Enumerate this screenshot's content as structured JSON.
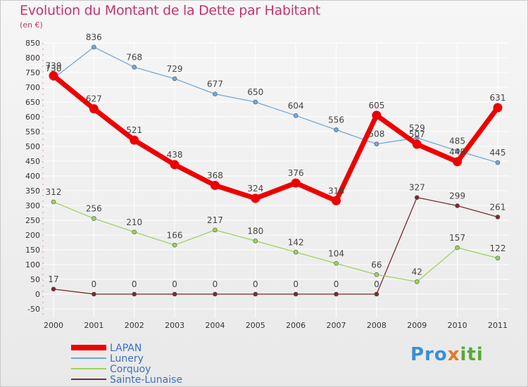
{
  "chart_data": {
    "type": "line",
    "title": "Evolution du Montant de la Dette par Habitant",
    "ylabel": "(en €)",
    "x": [
      "2000",
      "2001",
      "2002",
      "2003",
      "2004",
      "2005",
      "2006",
      "2007",
      "2008",
      "2009",
      "2010",
      "2011"
    ],
    "ylim": [
      -50,
      850
    ],
    "yticks": [
      -50,
      0,
      50,
      100,
      150,
      200,
      250,
      300,
      350,
      400,
      450,
      500,
      550,
      600,
      650,
      700,
      750,
      800,
      850
    ],
    "grid": true,
    "legend_position": "bottom-left",
    "series": [
      {
        "name": "LAPAN",
        "color": "#ee0000",
        "values": [
          739,
          627,
          521,
          438,
          368,
          324,
          376,
          316,
          605,
          507,
          448,
          631
        ],
        "labels": [
          "739",
          "627",
          "521",
          "438",
          "368",
          "324",
          "376",
          "316",
          "605",
          "507",
          "448",
          "631"
        ]
      },
      {
        "name": "Lunery",
        "color": "#6fa8dc",
        "values": [
          730,
          836,
          768,
          729,
          677,
          650,
          604,
          556,
          508,
          529,
          485,
          445
        ],
        "labels": [
          "730",
          "836",
          "768",
          "729",
          "677",
          "650",
          "604",
          "556",
          "508",
          "529",
          "485",
          "445"
        ]
      },
      {
        "name": "Corquoy",
        "color": "#9cd35a",
        "values": [
          312,
          256,
          210,
          166,
          217,
          180,
          142,
          104,
          66,
          42,
          157,
          122
        ],
        "labels": [
          "312",
          "256",
          "210",
          "166",
          "217",
          "180",
          "142",
          "104",
          "66",
          "42",
          "157",
          "122"
        ]
      },
      {
        "name": "Sainte-Lunaise",
        "color": "#7a2a2a",
        "values": [
          17,
          0,
          0,
          0,
          0,
          0,
          0,
          0,
          0,
          327,
          299,
          261
        ],
        "labels": [
          "17",
          "0",
          "0",
          "0",
          "0",
          "0",
          "0",
          "0",
          "0",
          "327",
          "299",
          "261"
        ]
      }
    ]
  },
  "logo": {
    "part1": "Pro",
    "part2": "x",
    "part3": "iti"
  }
}
